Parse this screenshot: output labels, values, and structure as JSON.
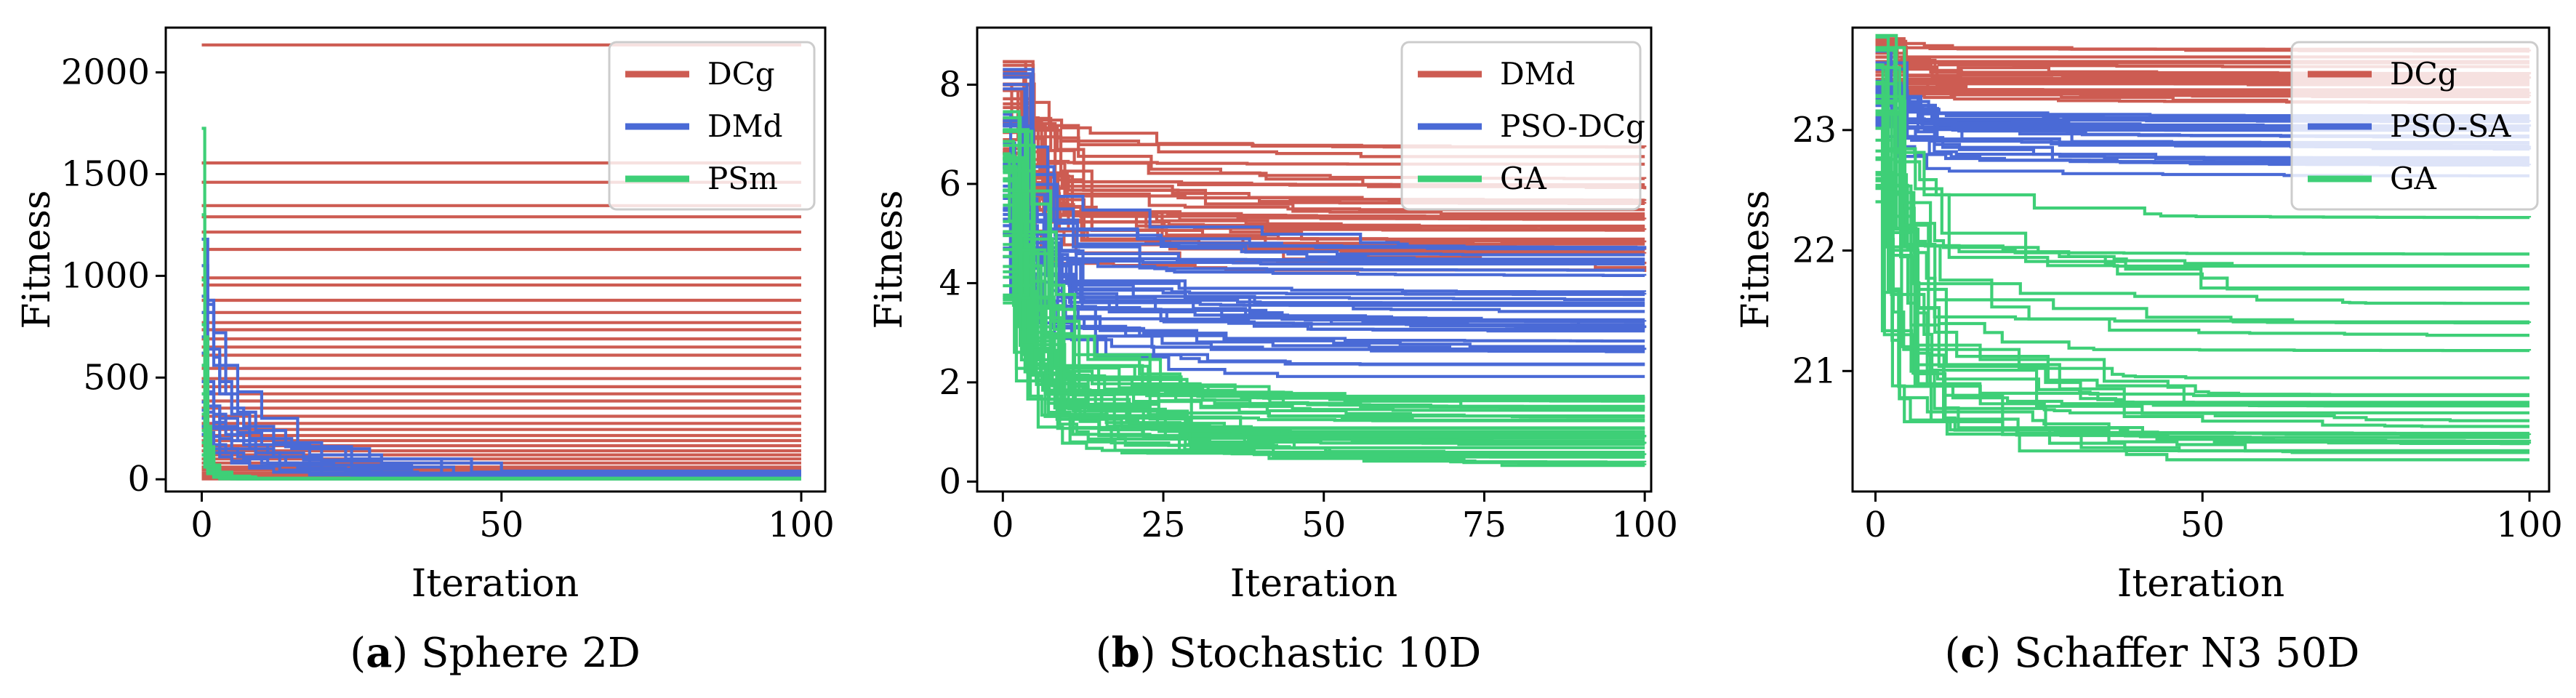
{
  "colors": {
    "red": "#cd5c52",
    "blue": "#4a6ad6",
    "green": "#3ecf77",
    "frame": "#000000"
  },
  "chart_data": [
    {
      "type": "line",
      "caption_letter": "a",
      "caption_text": "Sphere 2D",
      "xlabel": "Iteration",
      "ylabel": "Fitness",
      "xlim": [
        -6,
        104
      ],
      "ylim": [
        -60,
        2220
      ],
      "xticks": [
        0,
        50,
        100
      ],
      "xtick_labels": [
        "0",
        "50",
        "100"
      ],
      "yticks": [
        0,
        500,
        1000,
        1500,
        2000
      ],
      "ytick_labels": [
        "0",
        "500",
        "1000",
        "1500",
        "2000"
      ],
      "legend": [
        "DCg",
        "DMd",
        "PSm"
      ],
      "legend_position": "top-right",
      "series": [
        {
          "name": "DCg",
          "color": "red",
          "constant_levels": [
            2135,
            1555,
            1460,
            1345,
            1290,
            1215,
            1130,
            990,
            955,
            880,
            820,
            770,
            735,
            690,
            650,
            610,
            545,
            495,
            455,
            420,
            385,
            350,
            310,
            275,
            245,
            215,
            190,
            165,
            140,
            120,
            100,
            80,
            60,
            45,
            30,
            20,
            12,
            5,
            2
          ]
        },
        {
          "name": "DMd",
          "color": "blue",
          "traces": [
            {
              "x": [
                0,
                1,
                2,
                3,
                5,
                8,
                12,
                18
              ],
              "y": [
                1180,
                860,
                600,
                420,
                320,
                200,
                110,
                30
              ]
            },
            {
              "x": [
                0,
                1,
                2,
                4,
                6,
                10,
                16,
                25
              ],
              "y": [
                1050,
                880,
                720,
                560,
                430,
                300,
                160,
                20
              ]
            },
            {
              "x": [
                0,
                1,
                3,
                5,
                7,
                12,
                20,
                30
              ],
              "y": [
                900,
                640,
                480,
                350,
                260,
                180,
                90,
                15
              ]
            },
            {
              "x": [
                0,
                2,
                4,
                6,
                9,
                14,
                24,
                40
              ],
              "y": [
                820,
                560,
                420,
                330,
                240,
                160,
                100,
                10
              ]
            },
            {
              "x": [
                0,
                1,
                2,
                3,
                6,
                9,
                13,
                20
              ],
              "y": [
                700,
                480,
                360,
                260,
                190,
                130,
                70,
                25
              ]
            },
            {
              "x": [
                0,
                1,
                2,
                4,
                8,
                15,
                28,
                45
              ],
              "y": [
                620,
                430,
                320,
                250,
                200,
                150,
                100,
                35
              ]
            },
            {
              "x": [
                0,
                1,
                3,
                6,
                10,
                18,
                30,
                50
              ],
              "y": [
                560,
                360,
                300,
                230,
                170,
                120,
                80,
                40
              ]
            },
            {
              "x": [
                0,
                1,
                2,
                5,
                8,
                12,
                20,
                35
              ],
              "y": [
                480,
                330,
                250,
                190,
                150,
                110,
                70,
                30
              ]
            },
            {
              "x": [
                0,
                2,
                4,
                7,
                11,
                17,
                25,
                42
              ],
              "y": [
                420,
                280,
                220,
                170,
                130,
                95,
                60,
                22
              ]
            },
            {
              "x": [
                0,
                1,
                3,
                5,
                9,
                14,
                22,
                35
              ],
              "y": [
                380,
                260,
                200,
                150,
                110,
                80,
                50,
                18
              ]
            },
            {
              "x": [
                0,
                1,
                2,
                4,
                7,
                11,
                18,
                28
              ],
              "y": [
                340,
                230,
                170,
                130,
                100,
                70,
                45,
                12
              ]
            },
            {
              "x": [
                0,
                1,
                3,
                6,
                10,
                16,
                24,
                36
              ],
              "y": [
                300,
                210,
                150,
                110,
                80,
                55,
                35,
                10
              ]
            },
            {
              "x": [
                0,
                1,
                2,
                5,
                8,
                13,
                20,
                32
              ],
              "y": [
                260,
                180,
                130,
                90,
                65,
                45,
                30,
                8
              ]
            },
            {
              "x": [
                0,
                1,
                3,
                5,
                8,
                12,
                18,
                26
              ],
              "y": [
                220,
                150,
                110,
                80,
                55,
                35,
                22,
                6
              ]
            }
          ]
        },
        {
          "name": "PSm",
          "color": "green",
          "traces": [
            {
              "x": [
                0,
                0.5,
                1,
                1.5,
                2,
                3,
                5,
                8
              ],
              "y": [
                1725,
                700,
                260,
                110,
                60,
                30,
                15,
                5
              ]
            },
            {
              "x": [
                0,
                0.5,
                1,
                1.5,
                2,
                3,
                5,
                9
              ],
              "y": [
                1300,
                520,
                200,
                90,
                50,
                25,
                12,
                4
              ]
            },
            {
              "x": [
                0,
                0.5,
                1,
                2,
                3,
                5,
                8
              ],
              "y": [
                980,
                380,
                160,
                70,
                35,
                15,
                5
              ]
            },
            {
              "x": [
                0,
                0.5,
                1,
                2,
                3,
                4,
                7
              ],
              "y": [
                760,
                300,
                120,
                55,
                25,
                12,
                4
              ]
            },
            {
              "x": [
                0,
                0.5,
                1,
                2,
                3,
                5,
                7
              ],
              "y": [
                560,
                220,
                100,
                45,
                20,
                10,
                3
              ]
            },
            {
              "x": [
                0,
                0.5,
                1,
                2,
                3,
                6
              ],
              "y": [
                420,
                170,
                80,
                35,
                15,
                3
              ]
            },
            {
              "x": [
                0,
                0.5,
                1,
                2,
                4,
                6
              ],
              "y": [
                320,
                140,
                65,
                28,
                10,
                2
              ]
            },
            {
              "x": [
                0,
                0.5,
                1,
                2,
                3,
                5
              ],
              "y": [
                240,
                100,
                50,
                20,
                8,
                2
              ]
            },
            {
              "x": [
                0,
                0.5,
                1,
                2,
                4
              ],
              "y": [
                180,
                80,
                35,
                14,
                3
              ]
            },
            {
              "x": [
                0,
                0.5,
                1,
                2,
                3
              ],
              "y": [
                120,
                60,
                28,
                10,
                2
              ]
            }
          ]
        }
      ]
    },
    {
      "type": "line",
      "caption_letter": "b",
      "caption_text": "Stochastic 10D",
      "xlabel": "Iteration",
      "ylabel": "Fitness",
      "xlim": [
        -4,
        101
      ],
      "ylim": [
        -0.2,
        9.15
      ],
      "xticks": [
        0,
        25,
        50,
        75,
        100
      ],
      "xtick_labels": [
        "0",
        "25",
        "50",
        "75",
        "100"
      ],
      "yticks": [
        0,
        2,
        4,
        6,
        8
      ],
      "ytick_labels": [
        "0",
        "2",
        "4",
        "6",
        "8"
      ],
      "legend": [
        "DMd",
        "PSO-DCg",
        "GA"
      ],
      "legend_position": "top-right",
      "series": [
        {
          "name": "DMd",
          "color": "red",
          "start_range": [
            6.5,
            8.7
          ],
          "end_range": [
            4.2,
            6.9
          ],
          "count": 32,
          "decay": 0.35,
          "min_step": 0.0
        },
        {
          "name": "PSO-DCg",
          "color": "blue",
          "start_range": [
            4.5,
            8.5
          ],
          "end_range": [
            2.0,
            4.8
          ],
          "count": 32,
          "decay": 0.18,
          "min_step": 0.0
        },
        {
          "name": "GA",
          "color": "green",
          "start_range": [
            3.5,
            7.5
          ],
          "end_range": [
            0.3,
            1.8
          ],
          "count": 40,
          "decay": 0.12,
          "min_step": 0.0
        }
      ]
    },
    {
      "type": "line",
      "caption_letter": "c",
      "caption_text": "Schaffer N3 50D",
      "xlabel": "Iteration",
      "ylabel": "Fitness",
      "xlim": [
        -3.5,
        103
      ],
      "ylim": [
        20.0,
        23.85
      ],
      "xticks": [
        0,
        50,
        100
      ],
      "xtick_labels": [
        "0",
        "50",
        "100"
      ],
      "yticks": [
        21,
        22,
        23
      ],
      "ytick_labels": [
        "21",
        "22",
        "23"
      ],
      "legend": [
        "DCg",
        "PSO-SA",
        "GA"
      ],
      "legend_position": "top-right",
      "series": [
        {
          "name": "DCg",
          "color": "red",
          "start_range": [
            23.3,
            23.78
          ],
          "end_range": [
            23.2,
            23.72
          ],
          "count": 26,
          "decay": 0.6,
          "min_step": 0.0
        },
        {
          "name": "PSO-SA",
          "color": "blue",
          "start_range": [
            23.0,
            23.7
          ],
          "end_range": [
            22.6,
            23.2
          ],
          "count": 26,
          "decay": 0.25,
          "min_step": 0.0
        },
        {
          "name": "GA",
          "color": "green",
          "start_range": [
            22.4,
            23.8
          ],
          "end_range": [
            20.2,
            22.3
          ],
          "count": 30,
          "decay": 0.1,
          "min_step": 0.0
        }
      ]
    }
  ]
}
